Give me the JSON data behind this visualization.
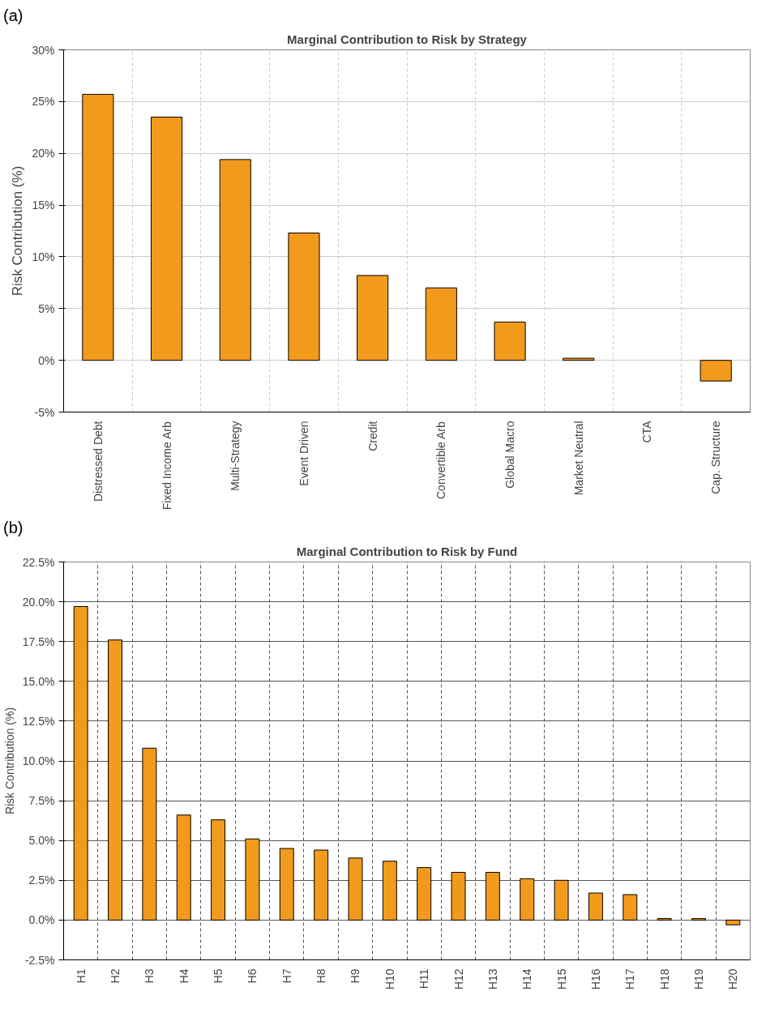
{
  "chart_data": [
    {
      "type": "bar",
      "title": "Marginal Contribution to Risk by Strategy",
      "ylabel": "Risk Contribution (%)",
      "annotations": [
        "(a)"
      ],
      "categories": [
        "Distressed Debt",
        "Fixed Income Arb",
        "Multi-Strategy",
        "Event Driven",
        "Credit",
        "Convertible Arb",
        "Global Macro",
        "Market Neutral",
        "CTA",
        "Cap. Structure"
      ],
      "values": [
        25.7,
        23.5,
        19.4,
        12.3,
        8.2,
        7.0,
        3.7,
        0.2,
        null,
        -2.0
      ],
      "color": "#f29a1c",
      "ylim": [
        -5,
        30
      ],
      "yticks": [
        {
          "value": -5,
          "label": "-5%"
        },
        {
          "value": 0,
          "label": "0%"
        },
        {
          "value": 5,
          "label": "5%"
        },
        {
          "value": 10,
          "label": "10%"
        },
        {
          "value": 15,
          "label": "15%"
        },
        {
          "value": 20,
          "label": "20%"
        },
        {
          "value": 25,
          "label": "25%"
        },
        {
          "value": 30,
          "label": "30%"
        }
      ],
      "grid": true
    },
    {
      "type": "bar",
      "title": "Marginal Contribution to Risk by Fund",
      "ylabel": "Risk Contribution (%)",
      "annotations": [
        "(b)"
      ],
      "categories": [
        "H1",
        "H2",
        "H3",
        "H4",
        "H5",
        "H6",
        "H7",
        "H8",
        "H9",
        "H10",
        "H11",
        "H12",
        "H13",
        "H14",
        "H15",
        "H16",
        "H17",
        "H18",
        "H19",
        "H20"
      ],
      "values": [
        19.7,
        17.6,
        10.8,
        6.6,
        6.3,
        5.1,
        4.5,
        4.4,
        3.9,
        3.7,
        3.3,
        3.0,
        3.0,
        2.6,
        2.5,
        1.7,
        1.6,
        0.1,
        0.1,
        -0.3
      ],
      "color": "#f29a1c",
      "ylim": [
        -2.5,
        22.5
      ],
      "yticks": [
        {
          "value": -2.5,
          "label": "-2.5%"
        },
        {
          "value": 0,
          "label": "0.0%"
        },
        {
          "value": 2.5,
          "label": "2.5%"
        },
        {
          "value": 5,
          "label": "5.0%"
        },
        {
          "value": 7.5,
          "label": "7.5%"
        },
        {
          "value": 10,
          "label": "10.0%"
        },
        {
          "value": 12.5,
          "label": "12.5%"
        },
        {
          "value": 15,
          "label": "15.0%"
        },
        {
          "value": 17.5,
          "label": "17.5%"
        },
        {
          "value": 20,
          "label": "20.0%"
        },
        {
          "value": 22.5,
          "label": "22.5%"
        }
      ],
      "grid": true
    }
  ]
}
